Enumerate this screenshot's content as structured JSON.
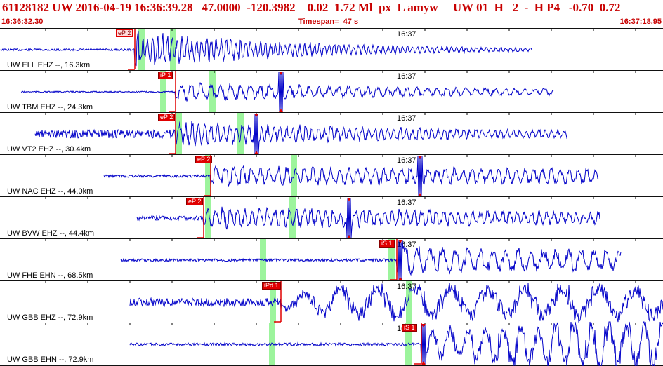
{
  "header": {
    "line1": "61128182 UW 2016-04-19 16:36:39.28   47.0000  -120.3982    0.02  1.72 Ml  px  L amyw     UW 01  H   2  -  H P4   -0.70  0.72",
    "start_time": "16:36:32.30",
    "timespan": "Timespan=  47 s",
    "end_time": "16:37:18.95"
  },
  "time_mark_label": "16:37",
  "traces": [
    {
      "label": "UW ELL EHZ --, 16.3km",
      "pick": "eP 2",
      "pick_hollow": true
    },
    {
      "label": "UW TBM EHZ --, 24.3km",
      "pick": "iP 1",
      "pick_hollow": false
    },
    {
      "label": "UW VT2 EHZ --, 30.4km",
      "pick": "eP 2",
      "pick_hollow": false
    },
    {
      "label": "UW NAC EHZ --, 44.0km",
      "pick": "eP 2",
      "pick_hollow": false
    },
    {
      "label": "UW BVW EHZ --, 44.4km",
      "pick": "eP 2",
      "pick_hollow": false
    },
    {
      "label": "UW FHE EHN --, 68.5km",
      "pick": "iS 1",
      "pick_hollow": false
    },
    {
      "label": "UW GBB EHZ --, 72.9km",
      "pick": "iPd 1",
      "pick_hollow": false
    },
    {
      "label": "UW GBB EHN --, 72.9km",
      "pick": "iS 1",
      "pick_hollow": false
    }
  ],
  "colors": {
    "trace": "#0000c8",
    "pick": "#e00000",
    "window": "#9cf49c",
    "header_text": "#c80000"
  }
}
